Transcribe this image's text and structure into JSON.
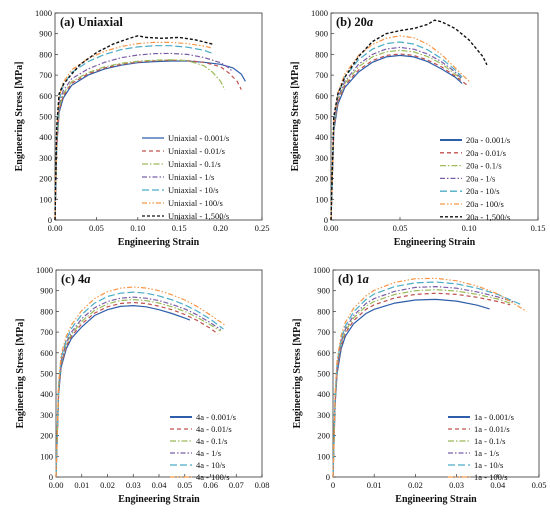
{
  "figure": {
    "panels": [
      "(a) Uniaxial",
      "(b) 20a",
      "(c) 4a",
      "(d) 1a"
    ]
  },
  "styles": {
    "colors": [
      "#2e5eaa",
      "#c0504d",
      "#9bbb59",
      "#7b5ea7",
      "#4bacc6",
      "#f79646",
      "#111111"
    ],
    "dashes": [
      "",
      "4,3",
      "6,2,1.5,2",
      "5,2,1.5,2",
      "7,3",
      "5,2,1.5,2,1.5,2",
      "3,2"
    ]
  },
  "chart_data": [
    {
      "type": "line",
      "title": "(a) Uniaxial",
      "xlabel": "Engineering Strain",
      "ylabel": "Engineering Stress [MPa]",
      "xlim": [
        0,
        0.25
      ],
      "ylim": [
        0,
        1000
      ],
      "xticks": [
        "0.00",
        "0.05",
        "0.10",
        "0.15",
        "0.20",
        "0.25"
      ],
      "yticks": [
        "0",
        "100",
        "200",
        "300",
        "400",
        "500",
        "600",
        "700",
        "800",
        "900",
        "1000"
      ],
      "legend_position": "bottom-right",
      "series": [
        {
          "name": "Uniaxial - 0.001/s",
          "x": [
            0,
            0.002,
            0.005,
            0.01,
            0.02,
            0.04,
            0.06,
            0.08,
            0.1,
            0.12,
            0.14,
            0.16,
            0.18,
            0.2,
            0.215,
            0.225,
            0.23
          ],
          "y": [
            0,
            350,
            520,
            590,
            650,
            700,
            730,
            748,
            760,
            765,
            768,
            768,
            762,
            752,
            735,
            705,
            670
          ]
        },
        {
          "name": "Uniaxial - 0.01/s",
          "x": [
            0,
            0.002,
            0.005,
            0.01,
            0.02,
            0.04,
            0.06,
            0.08,
            0.1,
            0.12,
            0.14,
            0.16,
            0.18,
            0.2,
            0.21,
            0.22,
            0.225
          ],
          "y": [
            0,
            360,
            530,
            600,
            660,
            706,
            735,
            752,
            763,
            769,
            772,
            770,
            762,
            740,
            710,
            670,
            630
          ]
        },
        {
          "name": "Uniaxial - 0.1/s",
          "x": [
            0,
            0.002,
            0.005,
            0.01,
            0.02,
            0.04,
            0.06,
            0.08,
            0.1,
            0.12,
            0.14,
            0.16,
            0.18,
            0.19,
            0.2,
            0.205
          ],
          "y": [
            0,
            370,
            540,
            610,
            668,
            712,
            740,
            757,
            767,
            772,
            774,
            770,
            745,
            715,
            670,
            630
          ]
        },
        {
          "name": "Uniaxial - 1/s",
          "x": [
            0,
            0.002,
            0.005,
            0.01,
            0.02,
            0.04,
            0.06,
            0.08,
            0.1,
            0.12,
            0.14,
            0.16,
            0.18,
            0.2,
            0.21,
            0.215
          ],
          "y": [
            0,
            390,
            560,
            625,
            682,
            730,
            762,
            784,
            797,
            804,
            805,
            800,
            785,
            760,
            735,
            715
          ]
        },
        {
          "name": "Uniaxial - 10/s",
          "x": [
            0,
            0.002,
            0.005,
            0.01,
            0.02,
            0.04,
            0.06,
            0.08,
            0.1,
            0.12,
            0.14,
            0.16,
            0.18,
            0.19
          ],
          "y": [
            0,
            410,
            580,
            650,
            712,
            765,
            800,
            823,
            836,
            842,
            842,
            835,
            820,
            805
          ]
        },
        {
          "name": "Uniaxial - 100/s",
          "x": [
            0,
            0.002,
            0.005,
            0.01,
            0.02,
            0.04,
            0.06,
            0.08,
            0.1,
            0.12,
            0.14,
            0.16,
            0.18,
            0.19
          ],
          "y": [
            0,
            420,
            595,
            665,
            725,
            780,
            815,
            838,
            852,
            858,
            858,
            852,
            840,
            830
          ]
        },
        {
          "name": "Uniaxial - 1,500/s",
          "x": [
            0,
            0.002,
            0.005,
            0.01,
            0.02,
            0.03,
            0.05,
            0.07,
            0.09,
            0.1,
            0.11,
            0.13,
            0.15,
            0.17,
            0.18,
            0.19
          ],
          "y": [
            0,
            450,
            610,
            655,
            705,
            750,
            808,
            850,
            878,
            890,
            882,
            878,
            882,
            870,
            860,
            850
          ]
        }
      ]
    },
    {
      "type": "line",
      "title": "(b) 20a",
      "xlabel": "Engineering Strain",
      "ylabel": "Engineering Stress [MPa]",
      "xlim": [
        0,
        0.15
      ],
      "ylim": [
        0,
        1000
      ],
      "xticks": [
        "0.00",
        "0.05",
        "0.10",
        "0.15"
      ],
      "yticks": [
        "0",
        "100",
        "200",
        "300",
        "400",
        "500",
        "600",
        "700",
        "800",
        "900",
        "1000"
      ],
      "legend_position": "bottom-right",
      "series": [
        {
          "name": "20a - 0.001/s",
          "x": [
            0,
            0.002,
            0.005,
            0.01,
            0.02,
            0.03,
            0.04,
            0.05,
            0.06,
            0.07,
            0.08,
            0.09,
            0.095
          ],
          "y": [
            0,
            430,
            560,
            640,
            715,
            762,
            788,
            795,
            788,
            765,
            730,
            690,
            660
          ]
        },
        {
          "name": "20a - 0.01/s",
          "x": [
            0,
            0.002,
            0.005,
            0.01,
            0.02,
            0.03,
            0.04,
            0.05,
            0.06,
            0.07,
            0.08,
            0.09,
            0.1
          ],
          "y": [
            0,
            440,
            570,
            650,
            725,
            770,
            795,
            802,
            795,
            773,
            740,
            695,
            645
          ]
        },
        {
          "name": "20a - 0.1/s",
          "x": [
            0,
            0.002,
            0.005,
            0.01,
            0.02,
            0.03,
            0.04,
            0.05,
            0.06,
            0.07,
            0.08,
            0.09,
            0.095
          ],
          "y": [
            0,
            450,
            580,
            660,
            740,
            788,
            812,
            820,
            812,
            790,
            755,
            705,
            675
          ]
        },
        {
          "name": "20a - 1/s",
          "x": [
            0,
            0.002,
            0.005,
            0.01,
            0.02,
            0.03,
            0.04,
            0.05,
            0.06,
            0.07,
            0.08,
            0.09,
            0.095
          ],
          "y": [
            0,
            460,
            590,
            670,
            752,
            800,
            826,
            834,
            825,
            802,
            765,
            715,
            680
          ]
        },
        {
          "name": "20a - 10/s",
          "x": [
            0,
            0.002,
            0.005,
            0.01,
            0.02,
            0.03,
            0.04,
            0.05,
            0.06,
            0.07,
            0.08,
            0.09,
            0.095
          ],
          "y": [
            0,
            470,
            605,
            690,
            775,
            825,
            852,
            860,
            850,
            822,
            780,
            725,
            690
          ]
        },
        {
          "name": "20a - 100/s",
          "x": [
            0,
            0.002,
            0.005,
            0.01,
            0.02,
            0.03,
            0.04,
            0.05,
            0.06,
            0.07,
            0.08,
            0.09,
            0.1
          ],
          "y": [
            0,
            480,
            615,
            705,
            795,
            848,
            878,
            890,
            880,
            850,
            800,
            735,
            670
          ]
        },
        {
          "name": "20a - 1,500/s",
          "x": [
            0,
            0.002,
            0.005,
            0.01,
            0.02,
            0.03,
            0.04,
            0.05,
            0.06,
            0.07,
            0.075,
            0.08,
            0.09,
            0.1,
            0.11,
            0.113
          ],
          "y": [
            0,
            500,
            610,
            690,
            790,
            862,
            900,
            915,
            925,
            945,
            965,
            958,
            925,
            870,
            790,
            750
          ]
        }
      ]
    },
    {
      "type": "line",
      "title": "(c) 4a",
      "xlabel": "Engineering Strain",
      "ylabel": "Engineering Stress [MPa]",
      "xlim": [
        0,
        0.08
      ],
      "ylim": [
        0,
        1000
      ],
      "xticks": [
        "0.00",
        "0.01",
        "0.02",
        "0.03",
        "0.04",
        "0.05",
        "0.06",
        "0.07",
        "0.08"
      ],
      "yticks": [
        "0",
        "100",
        "200",
        "300",
        "400",
        "500",
        "600",
        "700",
        "800",
        "900",
        "1000"
      ],
      "legend_position": "bottom-right",
      "series": [
        {
          "name": "4a - 0.001/s",
          "x": [
            0,
            0.001,
            0.002,
            0.004,
            0.006,
            0.01,
            0.015,
            0.02,
            0.025,
            0.03,
            0.035,
            0.04,
            0.045,
            0.05,
            0.052
          ],
          "y": [
            0,
            400,
            530,
            620,
            670,
            725,
            780,
            808,
            824,
            828,
            822,
            808,
            790,
            768,
            758
          ]
        },
        {
          "name": "4a - 0.01/s",
          "x": [
            0,
            0.001,
            0.002,
            0.004,
            0.006,
            0.01,
            0.015,
            0.02,
            0.025,
            0.03,
            0.035,
            0.04,
            0.045,
            0.05,
            0.055,
            0.06,
            0.063
          ],
          "y": [
            0,
            410,
            540,
            630,
            680,
            740,
            792,
            822,
            838,
            843,
            838,
            825,
            808,
            785,
            755,
            718,
            690
          ]
        },
        {
          "name": "4a - 0.1/s",
          "x": [
            0,
            0.001,
            0.002,
            0.004,
            0.006,
            0.01,
            0.015,
            0.02,
            0.025,
            0.03,
            0.035,
            0.04,
            0.045,
            0.05,
            0.055,
            0.06,
            0.064
          ],
          "y": [
            0,
            420,
            550,
            640,
            690,
            752,
            805,
            836,
            852,
            857,
            852,
            840,
            822,
            800,
            770,
            735,
            705
          ]
        },
        {
          "name": "4a - 1/s",
          "x": [
            0,
            0.001,
            0.002,
            0.004,
            0.006,
            0.01,
            0.015,
            0.02,
            0.025,
            0.03,
            0.035,
            0.04,
            0.045,
            0.05,
            0.055,
            0.06,
            0.064
          ],
          "y": [
            0,
            430,
            560,
            650,
            700,
            765,
            818,
            848,
            864,
            869,
            864,
            852,
            834,
            812,
            782,
            745,
            712
          ]
        },
        {
          "name": "4a - 10/s",
          "x": [
            0,
            0.001,
            0.002,
            0.004,
            0.006,
            0.01,
            0.015,
            0.02,
            0.025,
            0.03,
            0.035,
            0.04,
            0.045,
            0.05,
            0.055,
            0.06,
            0.065
          ],
          "y": [
            0,
            440,
            575,
            665,
            718,
            785,
            840,
            872,
            888,
            893,
            888,
            875,
            856,
            832,
            800,
            762,
            715
          ]
        },
        {
          "name": "4a - 100/s",
          "x": [
            0,
            0.001,
            0.002,
            0.004,
            0.006,
            0.01,
            0.015,
            0.02,
            0.025,
            0.03,
            0.035,
            0.04,
            0.045,
            0.05,
            0.055,
            0.06,
            0.066
          ],
          "y": [
            0,
            450,
            590,
            680,
            735,
            805,
            862,
            895,
            912,
            918,
            913,
            900,
            880,
            855,
            822,
            782,
            730
          ]
        }
      ]
    },
    {
      "type": "line",
      "title": "(d) 1a",
      "xlabel": "Engineering Strain",
      "ylabel": "Engineering Stress [MPa]",
      "xlim": [
        0,
        0.05
      ],
      "ylim": [
        0,
        1000
      ],
      "xticks": [
        "0",
        "0.01",
        "0.02",
        "0.03",
        "0.04",
        "0.05"
      ],
      "yticks": [
        "0",
        "100",
        "200",
        "300",
        "400",
        "500",
        "600",
        "700",
        "800",
        "900",
        "1000"
      ],
      "legend_position": "bottom-right",
      "series": [
        {
          "name": "1a - 0.001/s",
          "x": [
            0,
            0.0005,
            0.001,
            0.002,
            0.003,
            0.005,
            0.008,
            0.01,
            0.015,
            0.02,
            0.025,
            0.03,
            0.035,
            0.038
          ],
          "y": [
            0,
            350,
            500,
            620,
            680,
            740,
            790,
            810,
            840,
            855,
            858,
            850,
            830,
            812
          ]
        },
        {
          "name": "1a - 0.01/s",
          "x": [
            0,
            0.0005,
            0.001,
            0.002,
            0.003,
            0.005,
            0.008,
            0.01,
            0.015,
            0.02,
            0.025,
            0.03,
            0.035,
            0.04,
            0.043
          ],
          "y": [
            0,
            360,
            515,
            635,
            695,
            755,
            810,
            832,
            865,
            882,
            888,
            882,
            868,
            848,
            832
          ]
        },
        {
          "name": "1a - 0.1/s",
          "x": [
            0,
            0.0005,
            0.001,
            0.002,
            0.003,
            0.005,
            0.008,
            0.01,
            0.015,
            0.02,
            0.025,
            0.03,
            0.035,
            0.04,
            0.043
          ],
          "y": [
            0,
            370,
            525,
            645,
            705,
            768,
            825,
            848,
            882,
            900,
            905,
            898,
            882,
            860,
            840
          ]
        },
        {
          "name": "1a - 1/s",
          "x": [
            0,
            0.0005,
            0.001,
            0.002,
            0.003,
            0.005,
            0.008,
            0.01,
            0.015,
            0.02,
            0.025,
            0.03,
            0.035,
            0.04,
            0.044
          ],
          "y": [
            0,
            380,
            535,
            655,
            715,
            780,
            838,
            862,
            897,
            916,
            920,
            912,
            894,
            870,
            845
          ]
        },
        {
          "name": "1a - 10/s",
          "x": [
            0,
            0.0005,
            0.001,
            0.002,
            0.003,
            0.005,
            0.008,
            0.01,
            0.015,
            0.02,
            0.025,
            0.03,
            0.035,
            0.04,
            0.046
          ],
          "y": [
            0,
            390,
            550,
            670,
            730,
            798,
            858,
            884,
            920,
            938,
            942,
            933,
            912,
            882,
            830
          ]
        },
        {
          "name": "1a - 100/s",
          "x": [
            0,
            0.0005,
            0.001,
            0.002,
            0.003,
            0.005,
            0.008,
            0.01,
            0.015,
            0.02,
            0.025,
            0.03,
            0.035,
            0.04,
            0.047
          ],
          "y": [
            0,
            400,
            565,
            685,
            748,
            815,
            875,
            902,
            940,
            958,
            960,
            948,
            922,
            885,
            800
          ]
        }
      ]
    }
  ]
}
